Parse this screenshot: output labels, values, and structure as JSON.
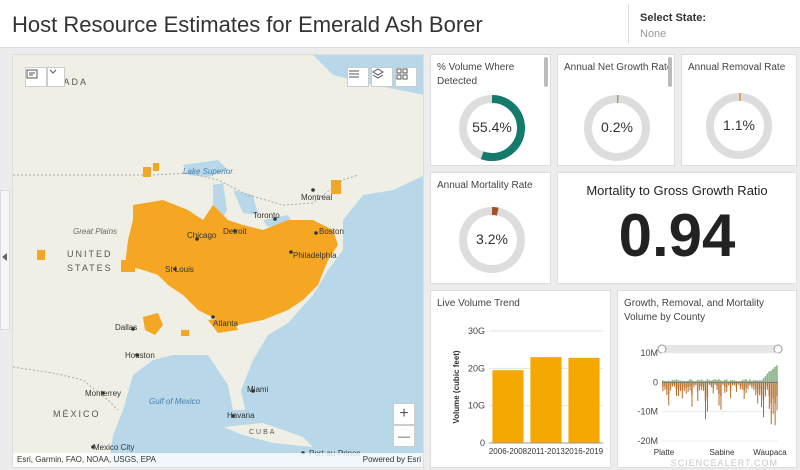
{
  "header": {
    "title": "Host Resource Estimates for Emerald Ash Borer",
    "select_label": "Select State:",
    "select_value": "None"
  },
  "map": {
    "labels": {
      "canada": "NADA",
      "united_states": "UNITED",
      "states": "STATES",
      "mexico": "MÉXICO",
      "great_plains": "Great Plains",
      "lake_superior": "Lake Superior",
      "gulf": "Gulf of Mexico",
      "cuba": "CUBA",
      "cities": {
        "montreal": "Montreal",
        "toronto": "Toronto",
        "detroit": "Detroit",
        "chicago": "Chicago",
        "boston": "Boston",
        "st_louis": "St Louis",
        "philadelphia": "Philadelphia",
        "dallas": "Dallas",
        "atlanta": "Atlanta",
        "houston": "Houston",
        "monterrey": "Monterrey",
        "miami": "Miami",
        "havana": "Havana",
        "mexico_city": "Mexico City",
        "port_au_prince": "Port-au-Prince"
      }
    },
    "attribution_left": "Esri, Garmin, FAO, NOAA, USGS, EPA",
    "attribution_right": "Powered by Esri",
    "zoom_in": "+",
    "zoom_out": "—",
    "infestation_color": "#f5a623"
  },
  "gauges": [
    {
      "id": "volume-detected",
      "title": "% Volume Where Detected",
      "value_label": "55.4%",
      "fraction": 0.554,
      "color": "#157a6e"
    },
    {
      "id": "net-growth",
      "title": "Annual Net Growth Rate",
      "value_label": "0.2%",
      "fraction": 0.002,
      "color": "#8aa36b"
    },
    {
      "id": "removal",
      "title": "Annual Removal Rate",
      "value_label": "1.1%",
      "fraction": 0.011,
      "color": "#e0a060"
    },
    {
      "id": "mortality",
      "title": "Annual Mortality Rate",
      "value_label": "3.2%",
      "fraction": 0.032,
      "color": "#a0522d"
    }
  ],
  "ratio": {
    "title": "Mortality to Gross Growth Ratio",
    "value": "0.94"
  },
  "chart_data": [
    {
      "type": "bar",
      "title": "Live Volume Trend",
      "categories": [
        "2006-2008",
        "2011-2013",
        "2016-2019"
      ],
      "values": [
        19.5,
        23.0,
        22.8
      ],
      "ylabel": "Volume (cubic feet)",
      "ylim": [
        0,
        30
      ],
      "yticks": [
        "30G",
        "20G",
        "10G",
        "0"
      ],
      "color": "#f5a800",
      "grid": true
    },
    {
      "type": "bar",
      "title": "Growth, Removal, and Mortality Volume by County",
      "yticks": [
        "10M",
        "0",
        "-10M",
        "-20M"
      ],
      "ylim": [
        -20,
        10
      ],
      "xticks": [
        "Platte",
        "Sabine",
        "Waupaca"
      ],
      "series": [
        {
          "color": "#8fb68a"
        },
        {
          "color": "#d2b48c"
        },
        {
          "color": "#b5651d"
        }
      ]
    }
  ],
  "watermark": "SCIENCEALERT.COM"
}
